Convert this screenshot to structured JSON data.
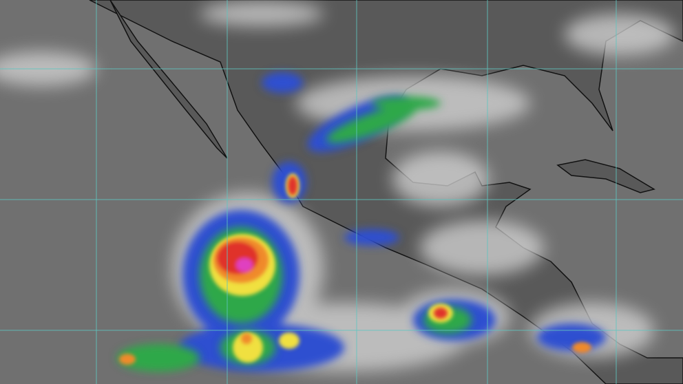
{
  "image": {
    "kind": "infrared satellite image",
    "colors": {
      "ocean": "#6f6f6f",
      "land": "#5a5a5a",
      "cloud": "#d8d8d8",
      "grid": "#5fc6c0",
      "coast": "#111111",
      "storm_blue": "#2e4fd0",
      "storm_green": "#2fa84a",
      "storm_yellow": "#f0e040",
      "storm_orange": "#f08a2a",
      "storm_red": "#e0302a",
      "storm_magenta": "#e040c0"
    }
  }
}
